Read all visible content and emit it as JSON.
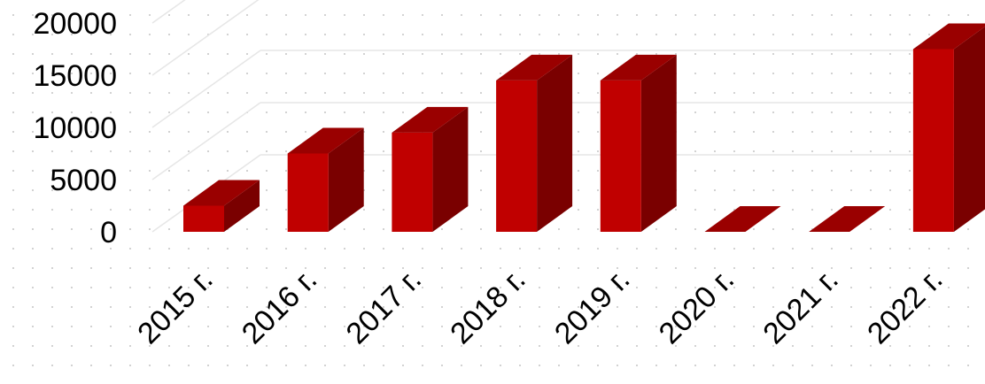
{
  "chart_data": {
    "type": "bar",
    "style": "3d-column",
    "title": "",
    "xlabel": "",
    "ylabel": "",
    "categories": [
      "2015 г.",
      "2016 г.",
      "2017 г.",
      "2018 г.",
      "2019 г.",
      "2020 г.",
      "2021 г.",
      "2022 г."
    ],
    "series": [
      {
        "values": [
          2500,
          7500,
          9500,
          14500,
          14500,
          0,
          0,
          17500
        ]
      }
    ],
    "ylim": [
      0,
      20000
    ],
    "yticks": [
      "0",
      "5000",
      "10000",
      "15000",
      "20000"
    ],
    "grid": true,
    "legend": "none",
    "colors": {
      "bar_front": "#c00000",
      "bar_top": "#9a0000",
      "bar_side": "#7a0000",
      "gridline": "#e6e6e6"
    }
  }
}
